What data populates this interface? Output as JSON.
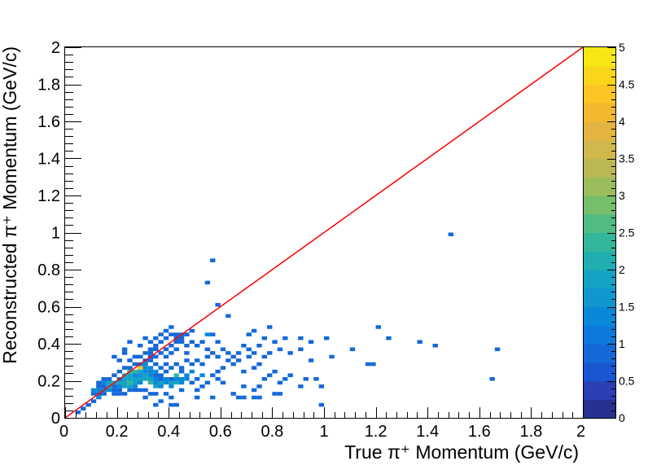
{
  "chart_data": {
    "type": "heatmap",
    "title": "",
    "xlabel": "True π⁺ Momentum (GeV/c)",
    "ylabel": "Reconstructed  π⁺ Momentum (GeV/c)",
    "xlim": [
      0,
      2
    ],
    "ylim": [
      0,
      2
    ],
    "bin_width": 0.02,
    "x_ticks": [
      "0",
      "0.2",
      "0.4",
      "0.6",
      "0.8",
      "1",
      "1.2",
      "1.4",
      "1.6",
      "1.8",
      "2"
    ],
    "y_ticks": [
      "0",
      "0.2",
      "0.4",
      "0.6",
      "0.8",
      "1",
      "1.2",
      "1.4",
      "1.6",
      "1.8",
      "2"
    ],
    "colorbar": {
      "zlim": [
        0,
        5
      ],
      "ticks": [
        "0",
        "0.5",
        "1",
        "1.5",
        "2",
        "2.5",
        "3",
        "3.5",
        "4",
        "4.5",
        "5"
      ],
      "colors": [
        "#27318f",
        "#2a40b4",
        "#1a56d1",
        "#1468d8",
        "#0e79dc",
        "#0988d8",
        "#1197cf",
        "#13a3c3",
        "#21aeb0",
        "#34b69a",
        "#52bb84",
        "#77be6c",
        "#9bbd5c",
        "#b8b955",
        "#d1b84c",
        "#e3b43f",
        "#f3b82e",
        "#fbc624",
        "#f9d61a",
        "#f7e814"
      ]
    },
    "reference_line": {
      "x": [
        0,
        2
      ],
      "y": [
        0,
        2
      ],
      "color": "#ff0000"
    },
    "grid": false,
    "legend": "none",
    "cells": [
      [
        0.05,
        0.03,
        1
      ],
      [
        0.07,
        0.05,
        1
      ],
      [
        0.09,
        0.07,
        1
      ],
      [
        0.11,
        0.09,
        1
      ],
      [
        0.13,
        0.11,
        1.5
      ],
      [
        0.15,
        0.13,
        1
      ],
      [
        0.17,
        0.15,
        1.5
      ],
      [
        0.19,
        0.17,
        1
      ],
      [
        0.21,
        0.19,
        2
      ],
      [
        0.23,
        0.21,
        2
      ],
      [
        0.25,
        0.23,
        2
      ],
      [
        0.27,
        0.25,
        2.5
      ],
      [
        0.29,
        0.27,
        4.5
      ],
      [
        0.31,
        0.29,
        1.5
      ],
      [
        0.33,
        0.31,
        1
      ],
      [
        0.35,
        0.33,
        1
      ],
      [
        0.37,
        0.35,
        1
      ],
      [
        0.39,
        0.37,
        1
      ],
      [
        0.41,
        0.39,
        1
      ],
      [
        0.43,
        0.41,
        1
      ],
      [
        0.11,
        0.13,
        1
      ],
      [
        0.13,
        0.13,
        1
      ],
      [
        0.11,
        0.15,
        1.5
      ],
      [
        0.13,
        0.15,
        1.5
      ],
      [
        0.15,
        0.15,
        1.5
      ],
      [
        0.19,
        0.13,
        1
      ],
      [
        0.13,
        0.17,
        1
      ],
      [
        0.15,
        0.17,
        1
      ],
      [
        0.17,
        0.17,
        2
      ],
      [
        0.19,
        0.19,
        2
      ],
      [
        0.15,
        0.19,
        1.5
      ],
      [
        0.17,
        0.19,
        2
      ],
      [
        0.21,
        0.15,
        1
      ],
      [
        0.23,
        0.13,
        1
      ],
      [
        0.21,
        0.17,
        1.5
      ],
      [
        0.21,
        0.21,
        1
      ],
      [
        0.23,
        0.17,
        2
      ],
      [
        0.23,
        0.19,
        2
      ],
      [
        0.23,
        0.23,
        2
      ],
      [
        0.25,
        0.15,
        1
      ],
      [
        0.25,
        0.17,
        2
      ],
      [
        0.25,
        0.19,
        2.5
      ],
      [
        0.25,
        0.21,
        2
      ],
      [
        0.25,
        0.25,
        2.5
      ],
      [
        0.27,
        0.17,
        1.5
      ],
      [
        0.27,
        0.19,
        2
      ],
      [
        0.27,
        0.21,
        2
      ],
      [
        0.27,
        0.23,
        1.5
      ],
      [
        0.29,
        0.19,
        1.5
      ],
      [
        0.29,
        0.21,
        2
      ],
      [
        0.29,
        0.23,
        1.5
      ],
      [
        0.29,
        0.25,
        2
      ],
      [
        0.31,
        0.15,
        1
      ],
      [
        0.31,
        0.21,
        2
      ],
      [
        0.31,
        0.23,
        2
      ],
      [
        0.31,
        0.25,
        1.5
      ],
      [
        0.31,
        0.27,
        1.5
      ],
      [
        0.33,
        0.19,
        2.5
      ],
      [
        0.33,
        0.21,
        2
      ],
      [
        0.33,
        0.23,
        1.5
      ],
      [
        0.33,
        0.25,
        1.5
      ],
      [
        0.33,
        0.27,
        1.5
      ],
      [
        0.35,
        0.17,
        2
      ],
      [
        0.35,
        0.19,
        1.5
      ],
      [
        0.35,
        0.21,
        1.5
      ],
      [
        0.35,
        0.23,
        1
      ],
      [
        0.35,
        0.25,
        1.5
      ],
      [
        0.35,
        0.29,
        1
      ],
      [
        0.37,
        0.17,
        1.5
      ],
      [
        0.37,
        0.19,
        2
      ],
      [
        0.37,
        0.21,
        1
      ],
      [
        0.37,
        0.23,
        1
      ],
      [
        0.37,
        0.27,
        1
      ],
      [
        0.39,
        0.19,
        1.5
      ],
      [
        0.39,
        0.21,
        1.5
      ],
      [
        0.39,
        0.25,
        1
      ],
      [
        0.39,
        0.29,
        1
      ],
      [
        0.41,
        0.17,
        1.5
      ],
      [
        0.41,
        0.19,
        2
      ],
      [
        0.41,
        0.21,
        1
      ],
      [
        0.41,
        0.27,
        1
      ],
      [
        0.43,
        0.19,
        2
      ],
      [
        0.43,
        0.21,
        1.5
      ],
      [
        0.43,
        0.23,
        2.5
      ],
      [
        0.43,
        0.29,
        1
      ],
      [
        0.45,
        0.19,
        1.5
      ],
      [
        0.45,
        0.21,
        1.5
      ],
      [
        0.45,
        0.25,
        1
      ],
      [
        0.47,
        0.21,
        1.5
      ],
      [
        0.47,
        0.23,
        1.5
      ],
      [
        0.49,
        0.19,
        1
      ],
      [
        0.49,
        0.25,
        1.5
      ],
      [
        0.51,
        0.21,
        1
      ],
      [
        0.53,
        0.23,
        1.5
      ],
      [
        0.27,
        0.15,
        1
      ],
      [
        0.29,
        0.15,
        1
      ],
      [
        0.19,
        0.15,
        1
      ],
      [
        0.21,
        0.13,
        1
      ],
      [
        0.33,
        0.13,
        1
      ],
      [
        0.35,
        0.13,
        1
      ],
      [
        0.39,
        0.13,
        1
      ],
      [
        0.41,
        0.11,
        1
      ],
      [
        0.45,
        0.15,
        1
      ],
      [
        0.51,
        0.15,
        1
      ],
      [
        0.53,
        0.17,
        1
      ],
      [
        0.55,
        0.19,
        1
      ],
      [
        0.57,
        0.23,
        1
      ],
      [
        0.59,
        0.25,
        1
      ],
      [
        0.61,
        0.27,
        1
      ],
      [
        0.63,
        0.31,
        1
      ],
      [
        0.65,
        0.29,
        1
      ],
      [
        0.67,
        0.31,
        1
      ],
      [
        0.69,
        0.25,
        1
      ],
      [
        0.71,
        0.33,
        1
      ],
      [
        0.73,
        0.27,
        1
      ],
      [
        0.75,
        0.29,
        1
      ],
      [
        0.77,
        0.21,
        1
      ],
      [
        0.79,
        0.23,
        1
      ],
      [
        0.81,
        0.25,
        1
      ],
      [
        0.83,
        0.19,
        1
      ],
      [
        0.85,
        0.21,
        1
      ],
      [
        0.87,
        0.23,
        1
      ],
      [
        0.91,
        0.17,
        1
      ],
      [
        0.93,
        0.21,
        1
      ],
      [
        0.97,
        0.21,
        1
      ],
      [
        0.99,
        0.17,
        1
      ],
      [
        1.03,
        0.33,
        1
      ],
      [
        1.11,
        0.37,
        1
      ],
      [
        1.17,
        0.29,
        1
      ],
      [
        1.19,
        0.29,
        1
      ],
      [
        0.81,
        0.13,
        1
      ],
      [
        0.83,
        0.13,
        1
      ],
      [
        0.73,
        0.15,
        1
      ],
      [
        0.75,
        0.17,
        1
      ],
      [
        0.65,
        0.13,
        1
      ],
      [
        0.69,
        0.17,
        1
      ],
      [
        0.61,
        0.19,
        1
      ],
      [
        0.59,
        0.21,
        1
      ],
      [
        0.51,
        0.11,
        1
      ],
      [
        0.57,
        0.11,
        1
      ],
      [
        0.67,
        0.11,
        1
      ],
      [
        0.69,
        0.11,
        1
      ],
      [
        0.73,
        0.11,
        1
      ],
      [
        0.75,
        0.11,
        1
      ],
      [
        0.99,
        0.07,
        1
      ],
      [
        0.41,
        0.07,
        1
      ],
      [
        0.43,
        0.07,
        1
      ],
      [
        0.35,
        0.07,
        1
      ],
      [
        0.37,
        0.09,
        1
      ],
      [
        0.31,
        0.11,
        1
      ],
      [
        0.35,
        0.37,
        1
      ],
      [
        0.35,
        0.39,
        1
      ],
      [
        0.37,
        0.41,
        1
      ],
      [
        0.39,
        0.43,
        1
      ],
      [
        0.43,
        0.45,
        1
      ],
      [
        0.45,
        0.45,
        1
      ],
      [
        0.47,
        0.45,
        1
      ],
      [
        0.49,
        0.47,
        1
      ],
      [
        0.41,
        0.45,
        1
      ],
      [
        0.43,
        0.43,
        1
      ],
      [
        0.45,
        0.43,
        1
      ],
      [
        0.45,
        0.41,
        1
      ],
      [
        0.43,
        0.37,
        1
      ],
      [
        0.47,
        0.39,
        1
      ],
      [
        0.47,
        0.35,
        1
      ],
      [
        0.47,
        0.31,
        1
      ],
      [
        0.49,
        0.41,
        1
      ],
      [
        0.51,
        0.39,
        1
      ],
      [
        0.51,
        0.31,
        1
      ],
      [
        0.53,
        0.41,
        1
      ],
      [
        0.55,
        0.37,
        1
      ],
      [
        0.57,
        0.35,
        1
      ],
      [
        0.59,
        0.33,
        1
      ],
      [
        0.55,
        0.45,
        1.5
      ],
      [
        0.57,
        0.45,
        1
      ],
      [
        0.55,
        0.33,
        1
      ],
      [
        0.53,
        0.29,
        1
      ],
      [
        0.49,
        0.29,
        1
      ],
      [
        0.45,
        0.27,
        1
      ],
      [
        0.39,
        0.33,
        1
      ],
      [
        0.41,
        0.35,
        1
      ],
      [
        0.33,
        0.35,
        1
      ],
      [
        0.33,
        0.33,
        1
      ],
      [
        0.31,
        0.31,
        1
      ],
      [
        0.29,
        0.29,
        1
      ],
      [
        0.27,
        0.29,
        1
      ],
      [
        0.25,
        0.27,
        1
      ],
      [
        0.23,
        0.27,
        1
      ],
      [
        0.21,
        0.25,
        1
      ],
      [
        0.19,
        0.23,
        1
      ],
      [
        0.17,
        0.21,
        1
      ],
      [
        0.15,
        0.21,
        1
      ],
      [
        0.13,
        0.19,
        1
      ],
      [
        0.27,
        0.33,
        1
      ],
      [
        0.29,
        0.33,
        1
      ],
      [
        0.25,
        0.31,
        1
      ],
      [
        0.31,
        0.35,
        1
      ],
      [
        0.33,
        0.37,
        1
      ],
      [
        0.21,
        0.31,
        1
      ],
      [
        0.19,
        0.33,
        1
      ],
      [
        0.23,
        0.37,
        1
      ],
      [
        0.25,
        0.41,
        1
      ],
      [
        0.23,
        0.35,
        1
      ],
      [
        0.29,
        0.39,
        1
      ],
      [
        0.31,
        0.43,
        1
      ],
      [
        0.33,
        0.41,
        1
      ],
      [
        0.35,
        0.43,
        1
      ],
      [
        0.37,
        0.45,
        1
      ],
      [
        0.39,
        0.47,
        1
      ],
      [
        0.41,
        0.49,
        1
      ],
      [
        0.59,
        0.41,
        1
      ],
      [
        0.61,
        0.37,
        1
      ],
      [
        0.63,
        0.35,
        1
      ],
      [
        0.65,
        0.33,
        1
      ],
      [
        0.67,
        0.35,
        1
      ],
      [
        0.69,
        0.39,
        1
      ],
      [
        0.71,
        0.37,
        1
      ],
      [
        0.73,
        0.35,
        1
      ],
      [
        0.75,
        0.39,
        1
      ],
      [
        0.77,
        0.33,
        1
      ],
      [
        0.79,
        0.35,
        1
      ],
      [
        0.83,
        0.37,
        1
      ],
      [
        0.87,
        0.35,
        1
      ],
      [
        0.91,
        0.37,
        1
      ],
      [
        0.95,
        0.31,
        1
      ],
      [
        0.85,
        0.43,
        1
      ],
      [
        0.81,
        0.41,
        1
      ],
      [
        0.77,
        0.43,
        1
      ],
      [
        0.71,
        0.45,
        1
      ],
      [
        0.73,
        0.47,
        1
      ],
      [
        0.79,
        0.49,
        1
      ],
      [
        0.91,
        0.43,
        1
      ],
      [
        0.95,
        0.41,
        1
      ],
      [
        1.01,
        0.43,
        1
      ],
      [
        1.21,
        0.49,
        1
      ],
      [
        1.25,
        0.43,
        1
      ],
      [
        1.37,
        0.41,
        1
      ],
      [
        1.43,
        0.39,
        1
      ],
      [
        1.67,
        0.37,
        1
      ],
      [
        1.65,
        0.21,
        1
      ],
      [
        1.49,
        0.99,
        1
      ],
      [
        0.57,
        0.85,
        1
      ],
      [
        0.55,
        0.73,
        1
      ],
      [
        0.59,
        0.61,
        1
      ],
      [
        0.63,
        0.55,
        1
      ]
    ]
  }
}
